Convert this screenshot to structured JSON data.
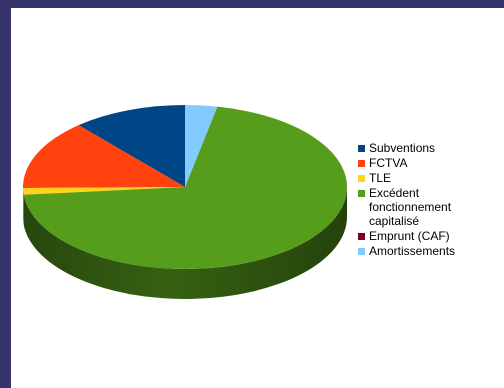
{
  "chart_data": {
    "type": "pie",
    "style": "3d",
    "categories": [
      "Subventions",
      "FCTVA",
      "TLE",
      "Excédent fonctionnement capitalisé",
      "Emprunt (CAF)",
      "Amortissements"
    ],
    "values": [
      11.4,
      13.8,
      1.3,
      70.3,
      0,
      3.2
    ],
    "colors": [
      "#004586",
      "#ff420e",
      "#ffd320",
      "#579d1c",
      "#7e0021",
      "#83caff"
    ],
    "legend": {
      "position": "right",
      "entries": [
        {
          "label": "Subventions",
          "color": "#004586"
        },
        {
          "label": "FCTVA",
          "color": "#ff420e"
        },
        {
          "label": "TLE",
          "color": "#ffd320"
        },
        {
          "label": "Excédent fonctionnement capitalisé",
          "color": "#579d1c"
        },
        {
          "label": "Emprunt (CAF)",
          "color": "#7e0021"
        },
        {
          "label": "Amortissements",
          "color": "#83caff"
        }
      ]
    }
  }
}
